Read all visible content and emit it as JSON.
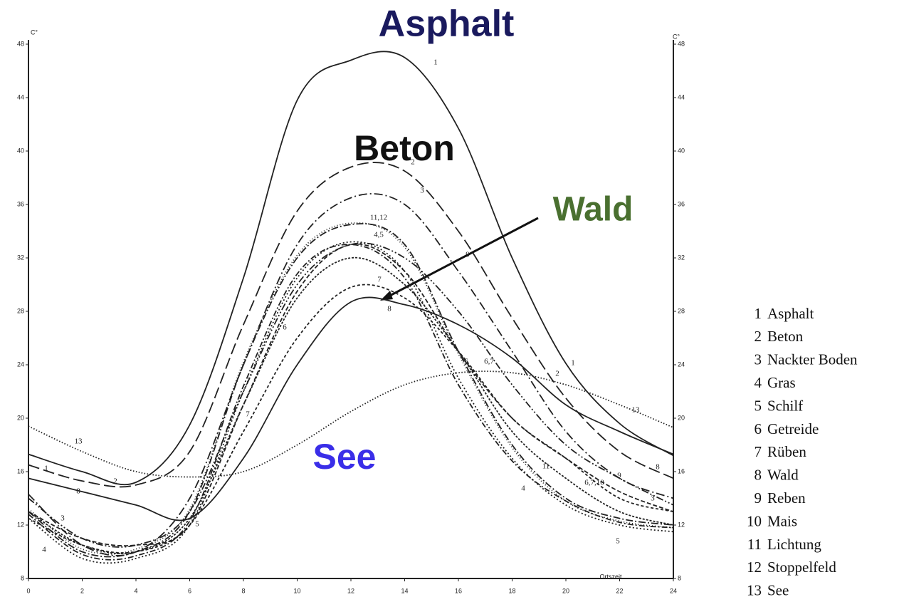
{
  "chart_data": {
    "type": "line",
    "y_label": "C°",
    "x_label": "Ortszeit",
    "x": [
      0,
      2,
      4,
      6,
      8,
      10,
      12,
      14,
      16,
      18,
      20,
      22,
      24
    ],
    "xlim": [
      0,
      24
    ],
    "xticks": [
      0,
      2,
      4,
      6,
      8,
      10,
      12,
      14,
      16,
      18,
      20,
      22,
      24
    ],
    "ylim": [
      8,
      48
    ],
    "yticks": [
      8,
      12,
      16,
      20,
      24,
      28,
      32,
      36,
      40,
      44,
      48
    ],
    "grid": false,
    "series": [
      {
        "number": "1",
        "name": "Asphalt",
        "color": "#222222",
        "dash": "none",
        "values": [
          17.3,
          16.0,
          15.2,
          19.5,
          30.5,
          43.8,
          46.8,
          47.0,
          41.7,
          32.0,
          24.1,
          19.6,
          17.2
        ]
      },
      {
        "number": "2",
        "name": "Beton",
        "color": "#222222",
        "dash": "16 6",
        "values": [
          16.5,
          15.3,
          15.0,
          17.5,
          27.0,
          35.5,
          38.8,
          38.5,
          34.0,
          27.5,
          21.5,
          17.5,
          15.5
        ]
      },
      {
        "number": "3",
        "name": "Nackter Boden",
        "color": "#222222",
        "dash": "12 4 2 4",
        "values": [
          14.3,
          10.5,
          10.0,
          14.0,
          24.0,
          33.0,
          36.5,
          36.0,
          31.0,
          25.0,
          19.0,
          15.5,
          14.0
        ]
      },
      {
        "number": "4",
        "name": "Gras",
        "color": "#222222",
        "dash": "2 3",
        "values": [
          12.5,
          9.5,
          9.5,
          12.0,
          22.0,
          30.5,
          33.2,
          31.0,
          23.0,
          17.0,
          13.5,
          12.0,
          11.5
        ]
      },
      {
        "number": "5",
        "name": "Schilf",
        "color": "#222222",
        "dash": "8 3 2 3",
        "values": [
          12.8,
          9.8,
          9.7,
          12.3,
          22.4,
          30.8,
          33.0,
          30.5,
          22.5,
          16.8,
          13.8,
          12.2,
          11.8
        ]
      },
      {
        "number": "6",
        "name": "Getreide",
        "color": "#222222",
        "dash": "6 3",
        "values": [
          13.0,
          11.0,
          10.5,
          12.0,
          21.0,
          29.5,
          33.0,
          31.0,
          25.0,
          20.0,
          17.0,
          14.5,
          13.0
        ]
      },
      {
        "number": "7",
        "name": "Rüben",
        "color": "#222222",
        "dash": "4 3",
        "values": [
          12.5,
          10.5,
          10.0,
          12.0,
          19.0,
          26.0,
          29.8,
          29.0,
          25.0,
          20.0,
          17.0,
          14.0,
          13.0
        ]
      },
      {
        "number": "8",
        "name": "Wald",
        "color": "#222222",
        "dash": "none",
        "values": [
          15.5,
          14.5,
          13.5,
          12.5,
          17.0,
          24.0,
          28.7,
          28.5,
          27.0,
          24.5,
          21.0,
          19.0,
          17.3
        ]
      },
      {
        "number": "9",
        "name": "Reben",
        "color": "#222222",
        "dash": "10 3 2 3 2 3",
        "values": [
          14.0,
          11.0,
          10.5,
          13.0,
          22.0,
          30.0,
          33.0,
          32.0,
          28.0,
          22.5,
          18.0,
          15.5,
          13.5
        ]
      },
      {
        "number": "10",
        "name": "Mais",
        "color": "#222222",
        "dash": "3 2",
        "values": [
          13.0,
          10.5,
          10.0,
          12.5,
          21.0,
          29.0,
          32.0,
          30.0,
          25.0,
          19.0,
          15.5,
          13.0,
          12.0
        ]
      },
      {
        "number": "11",
        "name": "Lichtung",
        "color": "#222222",
        "dash": "10 3 2 3",
        "values": [
          13.0,
          10.0,
          10.0,
          13.0,
          24.0,
          32.0,
          34.5,
          33.0,
          25.0,
          18.0,
          14.0,
          12.5,
          12.0
        ]
      },
      {
        "number": "12",
        "name": "Stoppelfeld",
        "color": "#222222",
        "dash": "1 3",
        "values": [
          13.2,
          10.2,
          10.2,
          13.2,
          24.2,
          32.2,
          34.6,
          32.8,
          24.8,
          17.8,
          13.8,
          12.3,
          11.8
        ]
      },
      {
        "number": "13",
        "name": "See",
        "color": "#222222",
        "dash": "1.5 2.5",
        "values": [
          19.4,
          17.5,
          16.0,
          15.6,
          16.0,
          18.0,
          20.5,
          22.5,
          23.4,
          23.4,
          22.5,
          21.0,
          19.3
        ]
      }
    ],
    "big_labels": [
      {
        "text": "Asphalt",
        "color": "#1a1a5e"
      },
      {
        "text": "Beton",
        "color": "#111111"
      },
      {
        "text": "Wald",
        "color": "#4a7030"
      },
      {
        "text": "See",
        "color": "#3a2ee8"
      }
    ],
    "curve_labels": [
      "1",
      "2",
      "3",
      "11,12",
      "4,5",
      "7",
      "8",
      "1",
      "2",
      "13",
      "13",
      "1",
      "8",
      "3",
      "4",
      "5",
      "7",
      "6",
      "9",
      "6",
      "6,7",
      "11",
      "6,7,10",
      "9",
      "8",
      "3",
      "5",
      "4",
      "2"
    ]
  }
}
